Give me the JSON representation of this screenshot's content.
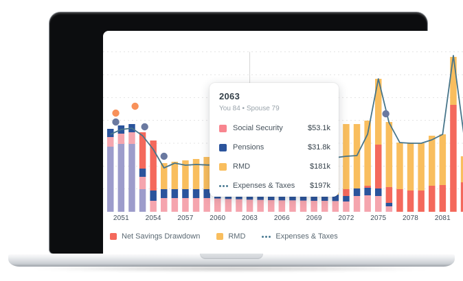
{
  "tooltip": {
    "title": "2063",
    "subtitle": "You 84 • Spouse 79",
    "rows": [
      {
        "label": "Social Security",
        "value": "$53.1k",
        "swatch": "#F8858F",
        "icon": "square"
      },
      {
        "label": "Pensions",
        "value": "$31.8k",
        "swatch": "#2B549C",
        "icon": "square"
      },
      {
        "label": "RMD",
        "value": "$181k",
        "swatch": "#F9BE5E",
        "icon": "square"
      },
      {
        "label": "Expenses & Taxes",
        "value": "$197k",
        "swatch": "#4A7B93",
        "icon": "dots"
      }
    ]
  },
  "legend": [
    {
      "label": "Net Savings Drawdown",
      "swatch": "#F4695C",
      "icon": "square"
    },
    {
      "label": "RMD",
      "swatch": "#F9BE5E",
      "icon": "square"
    },
    {
      "label": "Expenses & Taxes",
      "swatch": "#4A7B93",
      "icon": "dots"
    }
  ],
  "x_axis": {
    "ticks": [
      "2051",
      "2054",
      "2057",
      "2060",
      "2063",
      "2066",
      "2069",
      "2072",
      "2075",
      "2078",
      "2081"
    ]
  },
  "chart_data": {
    "type": "composed",
    "subtypes": [
      "stacked-bar",
      "line",
      "scatter"
    ],
    "x_start": 2050,
    "hover_year": 2063,
    "y_axis": {
      "visible": false,
      "gridline_interval_k": 100,
      "max_k": 790,
      "unit": "$k"
    },
    "colors": {
      "grid": "#E3E3E3",
      "hover_line": "#D6D6D6",
      "series": {
        "social_security": "#F5A5AE",
        "pensions": "#2B549C",
        "rmd": "#F9BE5E",
        "net_savings_drawdown": "#F4695C",
        "unlabeled_purple": "#9D9CCB"
      }
    },
    "bars": [
      {
        "year": 2050,
        "segments": [
          [
            "unlabeled_purple",
            285
          ],
          [
            "social_security",
            42
          ],
          [
            "pensions",
            36
          ]
        ]
      },
      {
        "year": 2051,
        "segments": [
          [
            "unlabeled_purple",
            297
          ],
          [
            "social_security",
            45
          ],
          [
            "pensions",
            36
          ]
        ]
      },
      {
        "year": 2052,
        "segments": [
          [
            "unlabeled_purple",
            297
          ],
          [
            "social_security",
            51
          ],
          [
            "pensions",
            36
          ]
        ]
      },
      {
        "year": 2053,
        "segments": [
          [
            "unlabeled_purple",
            99
          ],
          [
            "social_security",
            54
          ],
          [
            "pensions",
            36
          ],
          [
            "net_savings_drawdown",
            159
          ]
        ]
      },
      {
        "year": 2054,
        "segments": [
          [
            "social_security",
            48
          ],
          [
            "pensions",
            45
          ],
          [
            "net_savings_drawdown",
            219
          ]
        ]
      },
      {
        "year": 2055,
        "segments": [
          [
            "social_security",
            60
          ],
          [
            "pensions",
            39
          ],
          [
            "rmd",
            114
          ]
        ]
      },
      {
        "year": 2056,
        "segments": [
          [
            "social_security",
            60
          ],
          [
            "pensions",
            39
          ],
          [
            "rmd",
            120
          ]
        ]
      },
      {
        "year": 2057,
        "segments": [
          [
            "social_security",
            60
          ],
          [
            "pensions",
            39
          ],
          [
            "rmd",
            126
          ]
        ]
      },
      {
        "year": 2058,
        "segments": [
          [
            "social_security",
            60
          ],
          [
            "pensions",
            39
          ],
          [
            "rmd",
            132
          ]
        ]
      },
      {
        "year": 2059,
        "segments": [
          [
            "social_security",
            60
          ],
          [
            "pensions",
            39
          ],
          [
            "rmd",
            141
          ]
        ]
      },
      {
        "year": 2060,
        "segments": [
          [
            "social_security",
            58
          ],
          [
            "pensions",
            38
          ],
          [
            "rmd",
            150
          ]
        ]
      },
      {
        "year": 2061,
        "segments": [
          [
            "social_security",
            56
          ],
          [
            "pensions",
            33
          ],
          [
            "rmd",
            160
          ]
        ]
      },
      {
        "year": 2062,
        "segments": [
          [
            "social_security",
            55
          ],
          [
            "pensions",
            32
          ],
          [
            "rmd",
            170
          ]
        ]
      },
      {
        "year": 2063,
        "segments": [
          [
            "social_security",
            53.1
          ],
          [
            "pensions",
            31.8
          ],
          [
            "rmd",
            181
          ]
        ]
      },
      {
        "year": 2064,
        "segments": [
          [
            "social_security",
            52
          ],
          [
            "pensions",
            31
          ],
          [
            "rmd",
            180
          ]
        ]
      },
      {
        "year": 2065,
        "segments": [
          [
            "social_security",
            51
          ],
          [
            "pensions",
            31
          ],
          [
            "rmd",
            178
          ]
        ]
      },
      {
        "year": 2066,
        "segments": [
          [
            "social_security",
            50
          ],
          [
            "pensions",
            30
          ],
          [
            "rmd",
            176
          ]
        ]
      },
      {
        "year": 2067,
        "segments": [
          [
            "social_security",
            50
          ],
          [
            "pensions",
            30
          ],
          [
            "rmd",
            174
          ]
        ]
      },
      {
        "year": 2068,
        "segments": [
          [
            "social_security",
            49
          ],
          [
            "pensions",
            29
          ],
          [
            "rmd",
            172
          ]
        ]
      },
      {
        "year": 2069,
        "segments": [
          [
            "social_security",
            48
          ],
          [
            "pensions",
            29
          ],
          [
            "rmd",
            170
          ]
        ]
      },
      {
        "year": 2070,
        "segments": [
          [
            "social_security",
            48
          ],
          [
            "pensions",
            28
          ],
          [
            "rmd",
            168
          ]
        ]
      },
      {
        "year": 2071,
        "segments": [
          [
            "social_security",
            47
          ],
          [
            "pensions",
            28
          ],
          [
            "rmd",
            166
          ]
        ]
      },
      {
        "year": 2072,
        "segments": [
          [
            "social_security",
            45
          ],
          [
            "pensions",
            24
          ],
          [
            "net_savings_drawdown",
            30
          ],
          [
            "rmd",
            285
          ]
        ]
      },
      {
        "year": 2073,
        "segments": [
          [
            "social_security",
            69
          ],
          [
            "pensions",
            33
          ],
          [
            "rmd",
            282
          ]
        ]
      },
      {
        "year": 2074,
        "segments": [
          [
            "social_security",
            72
          ],
          [
            "pensions",
            33
          ],
          [
            "net_savings_drawdown",
            9
          ],
          [
            "rmd",
            285
          ]
        ]
      },
      {
        "year": 2075,
        "segments": [
          [
            "social_security",
            69
          ],
          [
            "pensions",
            33
          ],
          [
            "net_savings_drawdown",
            192
          ],
          [
            "rmd",
            288
          ]
        ]
      },
      {
        "year": 2076,
        "segments": [
          [
            "social_security",
            24
          ],
          [
            "pensions",
            15
          ],
          [
            "net_savings_drawdown",
            69
          ],
          [
            "rmd",
            285
          ]
        ]
      },
      {
        "year": 2077,
        "segments": [
          [
            "net_savings_drawdown",
            99
          ],
          [
            "rmd",
            204
          ]
        ]
      },
      {
        "year": 2078,
        "segments": [
          [
            "net_savings_drawdown",
            93
          ],
          [
            "rmd",
            210
          ]
        ]
      },
      {
        "year": 2079,
        "segments": [
          [
            "net_savings_drawdown",
            93
          ],
          [
            "rmd",
            207
          ]
        ]
      },
      {
        "year": 2080,
        "segments": [
          [
            "net_savings_drawdown",
            114
          ],
          [
            "rmd",
            219
          ]
        ]
      },
      {
        "year": 2081,
        "segments": [
          [
            "net_savings_drawdown",
            117
          ],
          [
            "rmd",
            222
          ]
        ]
      },
      {
        "year": 2082,
        "segments": [
          [
            "net_savings_drawdown",
            468
          ],
          [
            "rmd",
            210
          ]
        ]
      },
      {
        "year": 2083,
        "segments": [
          [
            "net_savings_drawdown",
            129
          ],
          [
            "rmd",
            114
          ]
        ]
      }
    ],
    "line": {
      "name": "Expenses & Taxes",
      "color": "#47758A",
      "points": [
        [
          2050,
          339
        ],
        [
          2051,
          360
        ],
        [
          2052,
          366
        ],
        [
          2053,
          333
        ],
        [
          2054,
          273
        ],
        [
          2055,
          192
        ],
        [
          2056,
          213
        ],
        [
          2057,
          204
        ],
        [
          2058,
          207
        ],
        [
          2059,
          205
        ],
        [
          2060,
          204
        ],
        [
          2061,
          202
        ],
        [
          2062,
          199
        ],
        [
          2063,
          197
        ],
        [
          2064,
          200
        ],
        [
          2065,
          204
        ],
        [
          2066,
          208
        ],
        [
          2067,
          213
        ],
        [
          2068,
          219
        ],
        [
          2069,
          225
        ],
        [
          2070,
          231
        ],
        [
          2071,
          237
        ],
        [
          2072,
          243
        ],
        [
          2073,
          246
        ],
        [
          2074,
          340
        ],
        [
          2075,
          582
        ],
        [
          2076,
          390
        ],
        [
          2077,
          303
        ],
        [
          2078,
          300
        ],
        [
          2079,
          300
        ],
        [
          2080,
          315
        ],
        [
          2081,
          339
        ],
        [
          2082,
          684
        ],
        [
          2083,
          330
        ]
      ]
    },
    "scatter": [
      {
        "name": "orange",
        "color": "#F8915A",
        "points": [
          [
            2050.5,
            432
          ],
          [
            2052.3,
            462
          ],
          [
            2059.8,
            324
          ]
        ]
      },
      {
        "name": "blue",
        "color": "#6A79A0",
        "points": [
          [
            2050.5,
            393
          ],
          [
            2053.2,
            372
          ],
          [
            2055,
            243
          ],
          [
            2075.7,
            429
          ]
        ]
      }
    ]
  }
}
